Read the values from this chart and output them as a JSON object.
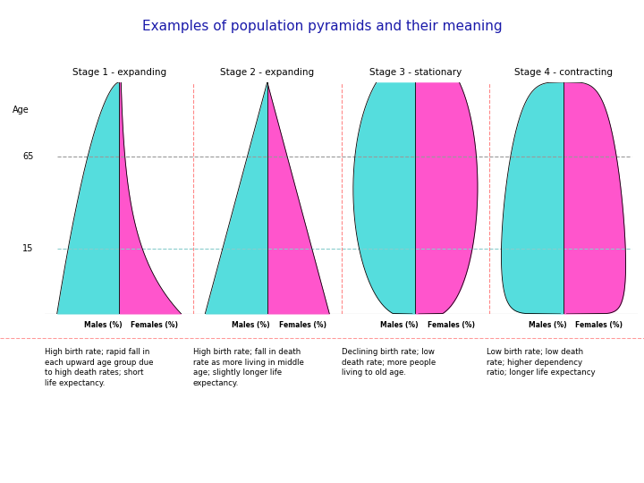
{
  "title": "Examples of population pyramids and their meaning",
  "title_color": "#1a1aaa",
  "title_fontsize": 11,
  "background_color": "#FFFFFF",
  "stages": [
    {
      "label": "Stage 1 - expanding",
      "description": "High birth rate; rapid fall in\neach upward age group due\nto high death rates; short\nlife expectancy."
    },
    {
      "label": "Stage 2 - expanding",
      "description": "High birth rate; fall in death\nrate as more living in middle\nage; slightly longer life\nexpectancy."
    },
    {
      "label": "Stage 3 - stationary",
      "description": "Declining birth rate; low\ndeath rate; more people\nliving to old age."
    },
    {
      "label": "Stage 4 - contracting",
      "description": "Low birth rate; low death\nrate; higher dependency\nratio; longer life expectancy"
    }
  ],
  "male_color": "#55DDDD",
  "female_color": "#FF55CC",
  "age_label": "Age",
  "age_65": "65",
  "age_15": "15",
  "males_label": "Males (%)",
  "females_label": "Females (%)",
  "dashed_65_color": "#999999",
  "dashed_15_color": "#88CCCC",
  "sep_line_color": "#FF8888",
  "border_color": "#888888"
}
